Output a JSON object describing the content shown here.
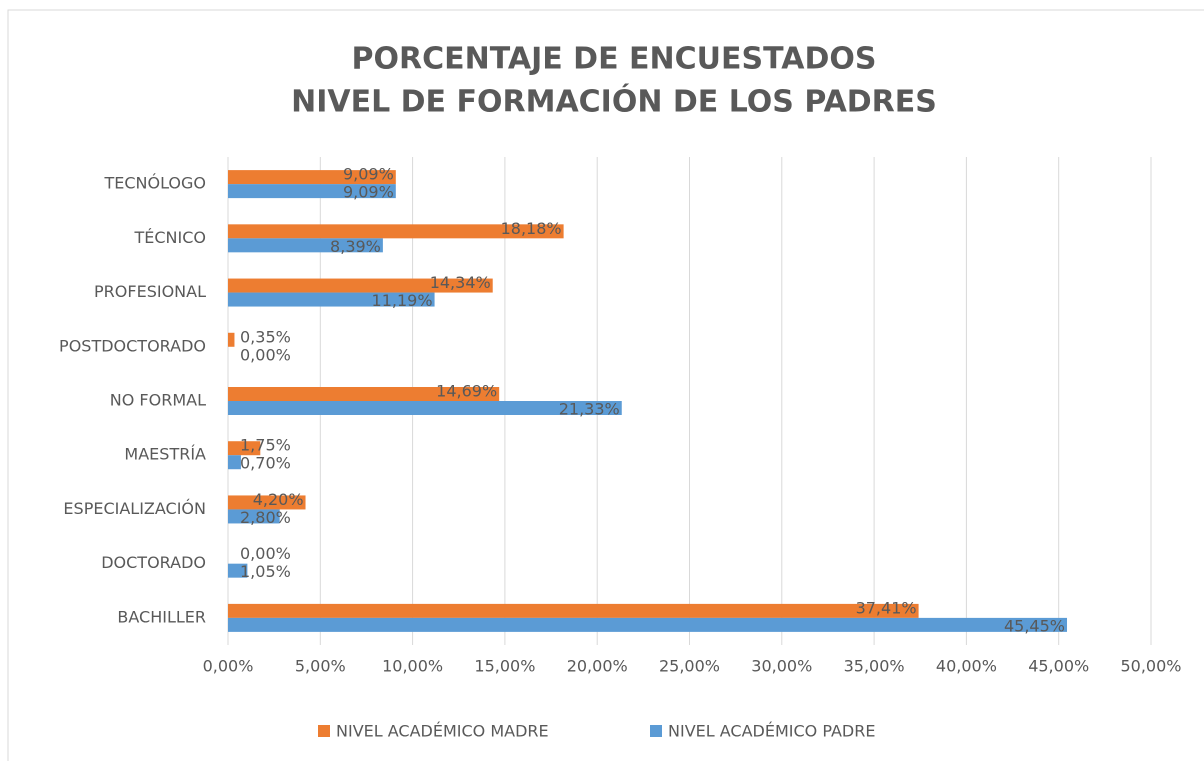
{
  "chart_data": {
    "type": "hbar",
    "title": [
      "PORCENTAJE DE ENCUESTADOS",
      "NIVEL DE FORMACIÓN DE LOS PADRES"
    ],
    "categories": [
      "TECNÓLOGO",
      "TÉCNICO",
      "PROFESIONAL",
      "POSTDOCTORADO",
      "NO FORMAL",
      "MAESTRÍA",
      "ESPECIALIZACIÓN",
      "DOCTORADO",
      "BACHILLER"
    ],
    "series": [
      {
        "name": "NIVEL ACADÉMICO MADRE",
        "color": "#ed7d31",
        "values": [
          9.09,
          18.18,
          14.34,
          0.35,
          14.69,
          1.75,
          4.2,
          0,
          37.41
        ],
        "value_labels": [
          "9,09%",
          "18,18%",
          "14,34%",
          "0,35%",
          "14,69%",
          "1,75%",
          "4,20%",
          "0,00%",
          "37,41%"
        ]
      },
      {
        "name": "NIVEL ACADÉMICO PADRE",
        "color": "#5b9bd5",
        "values": [
          9.09,
          8.39,
          11.19,
          0,
          21.33,
          0.7,
          2.8,
          1.05,
          45.45
        ],
        "value_labels": [
          "9,09%",
          "8,39%",
          "11,19%",
          "0,00%",
          "21,33%",
          "0,70%",
          "2,80%",
          "1,05%",
          "45,45%"
        ]
      }
    ],
    "xlim": [
      0,
      50
    ],
    "xticks": [
      {
        "value": 0,
        "label": "0,00%"
      },
      {
        "value": 5,
        "label": "5,00%"
      },
      {
        "value": 10,
        "label": "10,00%"
      },
      {
        "value": 15,
        "label": "15,00%"
      },
      {
        "value": 20,
        "label": "20,00%"
      },
      {
        "value": 25,
        "label": "25,00%"
      },
      {
        "value": 30,
        "label": "30,00%"
      },
      {
        "value": 35,
        "label": "35,00%"
      },
      {
        "value": 40,
        "label": "40,00%"
      },
      {
        "value": 45,
        "label": "45,00%"
      },
      {
        "value": 50,
        "label": "50,00%"
      }
    ],
    "grid": true,
    "legend": "bottom"
  }
}
